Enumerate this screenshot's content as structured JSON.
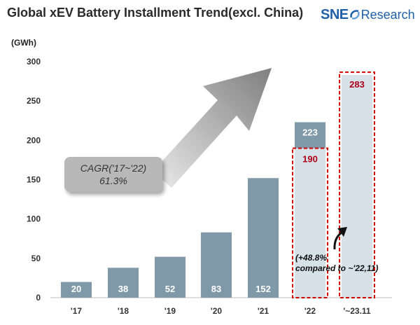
{
  "header": {
    "title": "Global xEV Battery Installment Trend(excl. China)",
    "logo": {
      "sne": "SNE",
      "research": "Research",
      "brand_color": "#1f5fa8"
    }
  },
  "chart_data": {
    "type": "bar",
    "title": "Global xEV Battery Installment Trend(excl. China)",
    "ylabel": "(GWh)",
    "xlabel": "",
    "ylim": [
      0,
      300
    ],
    "yticks": [
      0,
      50,
      100,
      150,
      200,
      250,
      300
    ],
    "categories": [
      "'17",
      "'18",
      "'19",
      "'20",
      "'21",
      "'22",
      "'~23.11"
    ],
    "values": [
      20,
      38,
      52,
      83,
      152,
      223,
      283
    ],
    "value_labels": [
      "20",
      "38",
      "52",
      "83",
      "152",
      "223",
      "283"
    ],
    "comparison": {
      "category": "'22",
      "value": 190,
      "label": "190"
    },
    "annotations": {
      "cagr": {
        "line1": "CAGR('17~'22)",
        "line2": "61.3%"
      },
      "growth_line1": "(+48.8%",
      "growth_line2": "compared to ~'22,11)"
    },
    "grid": false,
    "legend": "none",
    "colors": {
      "bar": "#7f99a8",
      "highlight_fill": "#d6e1e8",
      "dash_border": "#d00000",
      "highlight_text": "#b00018"
    }
  }
}
